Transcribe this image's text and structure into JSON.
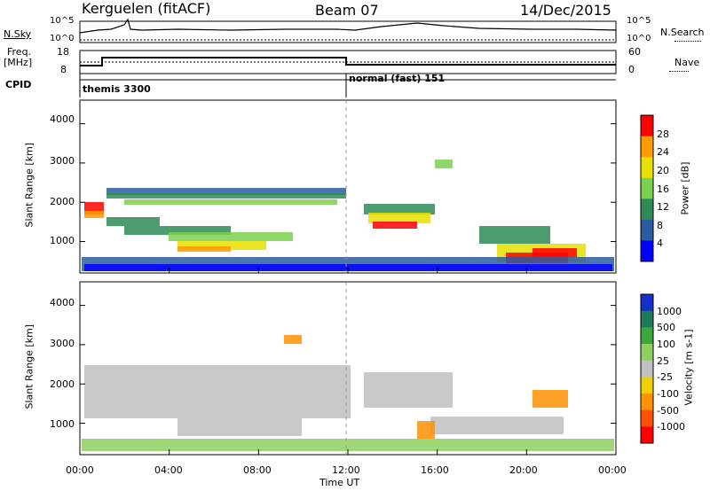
{
  "header": {
    "station": "Kerguelen (fitACF)",
    "beam": "Beam 07",
    "date": "14/Dec/2015"
  },
  "nsky_panel": {
    "left_label": "N.Sky",
    "left_ticks": [
      "10^5",
      "10^0"
    ],
    "right_label": "N.Search",
    "right_ticks": [
      "10^5",
      "10^0"
    ]
  },
  "freq_panel": {
    "left_label_1": "Freq.",
    "left_label_2": "[MHz]",
    "left_ticks": [
      "18",
      "8"
    ],
    "right_label": "Nave",
    "right_ticks": [
      "60",
      "0"
    ]
  },
  "cpid": {
    "label": "CPID",
    "modes": [
      {
        "name": "themis 3300",
        "start_hour": 0
      },
      {
        "name": "normal (fast) 151",
        "start_hour": 12
      }
    ]
  },
  "x_axis": {
    "label": "Time UT",
    "ticks": [
      "00:00",
      "04:00",
      "08:00",
      "12:00",
      "16:00",
      "20:00",
      "00:00"
    ],
    "range_hours": [
      0,
      24
    ]
  },
  "chart_data": [
    {
      "type": "heatmap",
      "name": "power",
      "ylabel": "Slant Range [km]",
      "yticks": [
        "1000",
        "2000",
        "3000",
        "4000"
      ],
      "ylim": [
        200,
        4600
      ],
      "colorbar_label": "Power [dB]",
      "colorbar_ticks": [
        "4",
        "8",
        "12",
        "16",
        "20",
        "24",
        "28"
      ],
      "colorbar_range": [
        0,
        32
      ],
      "colors": [
        "#0000ff",
        "#2c5aa0",
        "#2e8b57",
        "#7cd050",
        "#e8e000",
        "#ff9a00",
        "#ff0000"
      ]
    },
    {
      "type": "heatmap",
      "name": "velocity",
      "ylabel": "Slant Range [km]",
      "yticks": [
        "1000",
        "2000",
        "3000",
        "4000"
      ],
      "ylim": [
        200,
        4600
      ],
      "colorbar_label": "Velocity [m s-1]",
      "colorbar_ticks": [
        "1000",
        "500",
        "100",
        "25",
        "-25",
        "-100",
        "-500",
        "-1000"
      ],
      "colors": [
        "#1430c8",
        "#1e7a5a",
        "#3aa83a",
        "#8ed060",
        "#c0c0c0",
        "#f0d000",
        "#ff9000",
        "#ff5000",
        "#ff0000"
      ]
    }
  ],
  "colors": {
    "ground_scatter": "#c0c0c0",
    "dashed_line": "#999999"
  }
}
